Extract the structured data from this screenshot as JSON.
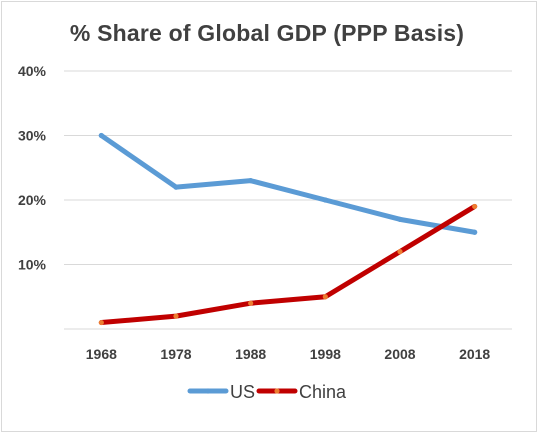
{
  "chart_data": {
    "type": "line",
    "title": "% Share of Global GDP (PPP Basis)",
    "categories": [
      "1968",
      "1978",
      "1988",
      "1998",
      "2008",
      "2018"
    ],
    "y_tick_labels": [
      "40%",
      "30%",
      "20%",
      "10%"
    ],
    "y_ticks": [
      40,
      30,
      20,
      10
    ],
    "ylim": [
      0,
      40
    ],
    "grid": true,
    "legend_position": "bottom",
    "series": [
      {
        "name": "US",
        "color": "#5b9bd5",
        "values": [
          30,
          22,
          23,
          20,
          17,
          15
        ]
      },
      {
        "name": "China",
        "color": "#c00000",
        "marker_color": "#ed7d31",
        "values": [
          1,
          2,
          4,
          5,
          12,
          19
        ]
      }
    ]
  }
}
